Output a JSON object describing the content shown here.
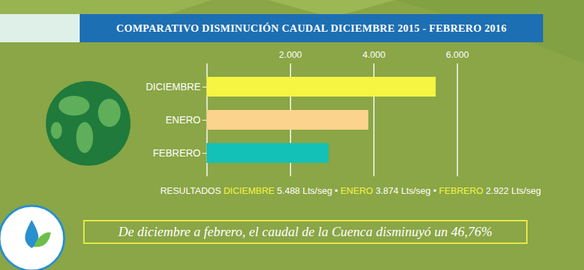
{
  "chart_data": {
    "type": "bar",
    "orientation": "horizontal",
    "title": "COMPARATIVO DISMINUCIÓN CAUDAL DICIEMBRE 2015 - FEBRERO 2016",
    "categories": [
      "DICIEMBRE",
      "ENERO",
      "FEBRERO"
    ],
    "values": [
      5488,
      3874,
      2922
    ],
    "value_labels": [
      "5.488 Lts/seg",
      "3.874 Lts/seg",
      "2.922 Lts/seg"
    ],
    "colors": [
      "#f6f542",
      "#fbd38c",
      "#14c1b6"
    ],
    "xlim": [
      0,
      6000
    ],
    "xticks": [
      {
        "value": 2000,
        "label": "2.000"
      },
      {
        "value": 4000,
        "label": "4.000"
      },
      {
        "value": 6000,
        "label": "6.000"
      }
    ],
    "grid": true,
    "results": {
      "label": "RESULTADOS",
      "separator": "•"
    },
    "annotations": [
      "De diciembre a febrero, el caudal de la Cuenca disminuyó un 46,76%"
    ]
  }
}
